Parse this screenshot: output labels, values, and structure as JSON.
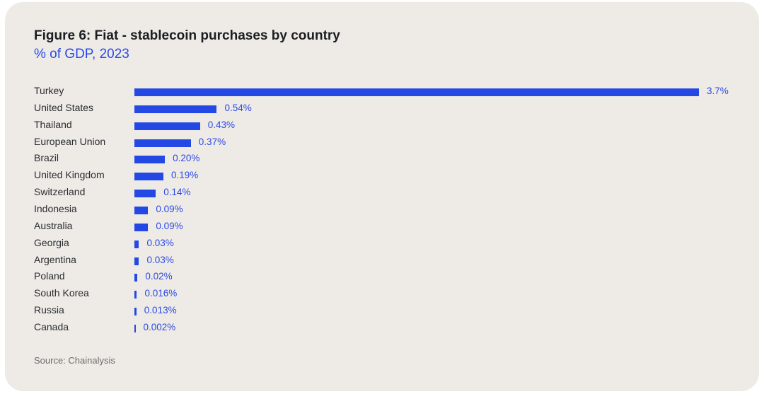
{
  "chart_data": {
    "type": "bar",
    "orientation": "horizontal",
    "title": "Figure 6: Fiat - stablecoin purchases by country",
    "subtitle": "% of GDP, 2023",
    "categories": [
      "Turkey",
      "United States",
      "Thailand",
      "European Union",
      "Brazil",
      "United Kingdom",
      "Switzerland",
      "Indonesia",
      "Australia",
      "Georgia",
      "Argentina",
      "Poland",
      "South Korea",
      "Russia",
      "Canada"
    ],
    "values": [
      3.7,
      0.54,
      0.43,
      0.37,
      0.2,
      0.19,
      0.14,
      0.09,
      0.09,
      0.03,
      0.03,
      0.02,
      0.016,
      0.013,
      0.002
    ],
    "labels": [
      "3.7%",
      "0.54%",
      "0.43%",
      "0.37%",
      "0.20%",
      "0.19%",
      "0.14%",
      "0.09%",
      "0.09%",
      "0.03%",
      "0.03%",
      "0.02%",
      "0.016%",
      "0.013%",
      "0.002%"
    ],
    "bar_color": "#2448e4",
    "grid": false,
    "source": "Source: Chainalysis"
  }
}
